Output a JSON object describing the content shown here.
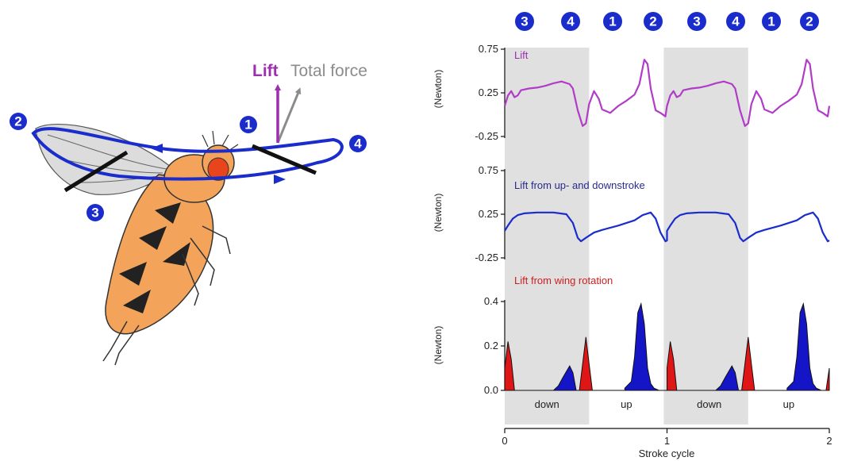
{
  "diagram": {
    "vectors": {
      "lift": "Lift",
      "total": "Total force"
    },
    "stroke_positions": [
      "1",
      "2",
      "3",
      "4"
    ],
    "colors": {
      "lift": "#9b2fae",
      "total": "#8c8c8c",
      "wing_path": "#1a2ccc",
      "badge": "#1a2ccc",
      "body": "#f4a45a",
      "eye": "#e8451d"
    }
  },
  "phase_badges": [
    "3",
    "4",
    "1",
    "2",
    "3",
    "4",
    "1",
    "2"
  ],
  "chart_data": [
    {
      "type": "line",
      "title": "Lift",
      "ylabel": "(Newton)",
      "yticks": [
        "0.75",
        "0.25",
        "-0.25"
      ],
      "ylim": [
        -0.25,
        0.75
      ],
      "x": [
        0,
        0.02,
        0.04,
        0.06,
        0.08,
        0.1,
        0.15,
        0.2,
        0.25,
        0.3,
        0.35,
        0.4,
        0.42,
        0.45,
        0.48,
        0.5,
        0.52,
        0.55,
        0.58,
        0.6,
        0.65,
        0.7,
        0.75,
        0.8,
        0.83,
        0.86,
        0.88,
        0.9,
        0.93,
        0.96,
        0.99,
        1.0
      ],
      "values": [
        0.1,
        0.22,
        0.27,
        0.2,
        0.22,
        0.28,
        0.3,
        0.31,
        0.33,
        0.36,
        0.38,
        0.35,
        0.3,
        0.05,
        -0.13,
        -0.1,
        0.12,
        0.27,
        0.18,
        0.06,
        0.02,
        0.1,
        0.16,
        0.23,
        0.35,
        0.63,
        0.58,
        0.3,
        0.05,
        0.02,
        -0.02,
        0.1
      ],
      "colors": {
        "line": "#b03cc8",
        "title": "#9b2fae"
      }
    },
    {
      "type": "line",
      "title": "Lift from up- and downstroke",
      "ylabel": "(Newton)",
      "yticks": [
        "0.75",
        "0.25",
        "-0.25"
      ],
      "ylim": [
        -0.25,
        0.75
      ],
      "x": [
        0,
        0.02,
        0.05,
        0.08,
        0.12,
        0.2,
        0.3,
        0.38,
        0.42,
        0.45,
        0.47,
        0.5,
        0.55,
        0.6,
        0.7,
        0.8,
        0.85,
        0.9,
        0.93,
        0.96,
        0.99,
        1.0
      ],
      "values": [
        0.06,
        0.12,
        0.2,
        0.24,
        0.26,
        0.27,
        0.27,
        0.25,
        0.15,
        -0.02,
        -0.06,
        -0.02,
        0.04,
        0.07,
        0.12,
        0.18,
        0.24,
        0.27,
        0.2,
        0.04,
        -0.06,
        -0.05
      ],
      "colors": {
        "line": "#1a2ccc",
        "title": "#2a2a8c"
      }
    },
    {
      "type": "area",
      "title": "Lift from wing rotation",
      "ylabel": "(Newton)",
      "yticks": [
        "0.4",
        "0.2",
        "0.0"
      ],
      "ylim": [
        0,
        0.4
      ],
      "x": [
        0,
        0.02,
        0.04,
        0.06,
        0.1,
        0.2,
        0.3,
        0.33,
        0.36,
        0.4,
        0.42,
        0.44,
        0.46,
        0.48,
        0.5,
        0.52,
        0.54,
        0.56,
        0.6,
        0.68,
        0.74,
        0.78,
        0.8,
        0.82,
        0.84,
        0.86,
        0.88,
        0.9,
        0.92,
        0.95,
        0.98,
        1.0
      ],
      "values": [
        0.1,
        0.22,
        0.14,
        0.0,
        0.0,
        0.0,
        0.0,
        0.02,
        0.06,
        0.11,
        0.08,
        0.0,
        0.0,
        0.12,
        0.24,
        0.12,
        0.0,
        0.0,
        0.0,
        0.01,
        0.01,
        0.04,
        0.15,
        0.35,
        0.39,
        0.3,
        0.1,
        0.03,
        0.01,
        0.0,
        0.0,
        0.1
      ],
      "colors": {
        "rotation_peaks": "#e01515",
        "upstroke_peaks": "#1515c8",
        "title": "#cc1f1f"
      }
    }
  ],
  "stroke_labels": [
    "down",
    "up",
    "down",
    "up"
  ],
  "xaxis": {
    "label": "Stroke cycle",
    "ticks": [
      "0",
      "1",
      "2"
    ],
    "range": [
      0,
      2
    ]
  }
}
